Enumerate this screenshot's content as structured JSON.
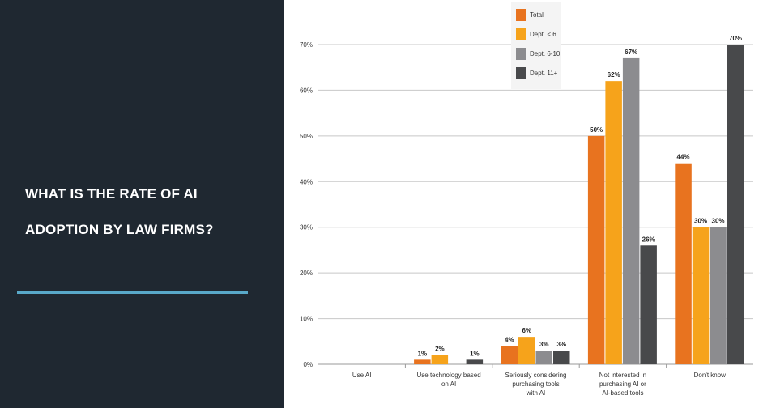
{
  "slide": {
    "title": "WHAT IS THE RATE OF AI ADOPTION BY LAW FIRMS?",
    "background_color": "#1f2831",
    "rule_color": "#59a9c9"
  },
  "chart_data": {
    "type": "bar",
    "title": "",
    "xlabel": "",
    "ylabel": "",
    "ylim": [
      0,
      70
    ],
    "y_ticks": [
      "0%",
      "10%",
      "20%",
      "30%",
      "40%",
      "50%",
      "60%",
      "70%"
    ],
    "grid": true,
    "legend_position": "top-center",
    "categories": [
      [
        "Use AI"
      ],
      [
        "Use technology based",
        "on AI"
      ],
      [
        "Seriously considering",
        "purchasing tools",
        "with AI"
      ],
      [
        "Not interested in",
        "purchasing AI or",
        "AI-based tools"
      ],
      [
        "Don't know"
      ]
    ],
    "series": [
      {
        "name": "Total",
        "color": "#e8731f",
        "values": [
          null,
          1,
          4,
          50,
          44
        ],
        "labels": [
          "",
          "1%",
          "4%",
          "50%",
          "44%"
        ]
      },
      {
        "name": "Dept. < 6",
        "color": "#f6a31b",
        "values": [
          null,
          2,
          6,
          62,
          30
        ],
        "labels": [
          "",
          "2%",
          "6%",
          "62%",
          "30%"
        ]
      },
      {
        "name": "Dept. 6-10",
        "color": "#8c8c8f",
        "values": [
          null,
          null,
          3,
          67,
          30
        ],
        "labels": [
          "",
          "",
          "3%",
          "67%",
          "30%"
        ]
      },
      {
        "name": "Dept. 11+",
        "color": "#48494b",
        "values": [
          null,
          1,
          3,
          26,
          70
        ],
        "labels": [
          "",
          "1%",
          "3%",
          "26%",
          "70%"
        ]
      }
    ]
  }
}
